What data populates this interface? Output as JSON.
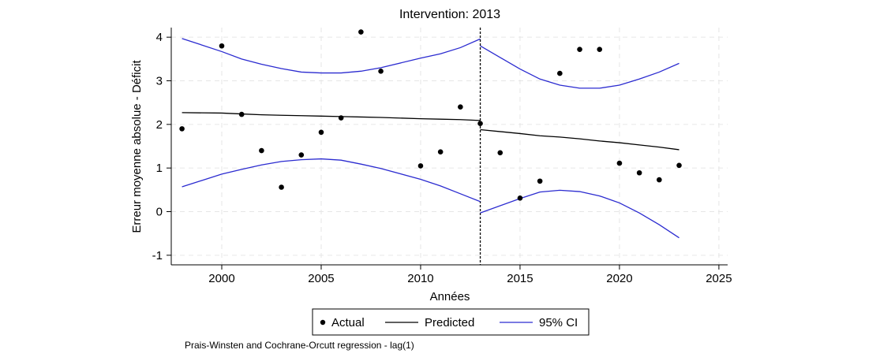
{
  "chart_data": {
    "type": "line",
    "title": "Intervention: 2013",
    "xlabel": "Années",
    "ylabel": "Erreur moyenne absolue - Déficit",
    "note": "Prais-Winsten and Cochrane-Orcutt regression - lag(1)",
    "xlim": [
      1997.46,
      2025.44
    ],
    "ylim": [
      -1.22,
      4.22
    ],
    "xticks": [
      2000,
      2005,
      2010,
      2015,
      2020,
      2025
    ],
    "yticks": [
      -1,
      0,
      1,
      2,
      3,
      4
    ],
    "grid": true,
    "intervention_year": 2013,
    "legend": {
      "placement": "bottom",
      "entries": [
        "Actual",
        "Predicted",
        "95% CI"
      ]
    },
    "colors": {
      "actual": "#000000",
      "predicted": "#000000",
      "ci": "#2b2bd0",
      "grid": "#e6e6e6"
    },
    "actual": {
      "x": [
        1998,
        2000,
        2001,
        2002,
        2003,
        2004,
        2005,
        2006,
        2007,
        2008,
        2010,
        2011,
        2012,
        2013,
        2014,
        2015,
        2016,
        2017,
        2018,
        2019,
        2020,
        2021,
        2022,
        2023
      ],
      "y": [
        1.9,
        3.8,
        2.23,
        1.4,
        0.56,
        1.3,
        1.82,
        2.15,
        4.12,
        3.22,
        1.05,
        1.37,
        2.4,
        2.02,
        1.35,
        0.31,
        0.7,
        3.17,
        3.72,
        3.72,
        1.11,
        0.89,
        0.73,
        1.06
      ]
    },
    "segments": [
      {
        "x": [
          1998,
          2000,
          2001,
          2002,
          2003,
          2004,
          2005,
          2006,
          2007,
          2008,
          2010,
          2011,
          2012,
          2013
        ],
        "predicted": [
          2.27,
          2.26,
          2.24,
          2.22,
          2.21,
          2.2,
          2.19,
          2.18,
          2.17,
          2.16,
          2.13,
          2.12,
          2.11,
          2.09
        ],
        "upper": [
          3.97,
          3.67,
          3.5,
          3.38,
          3.28,
          3.2,
          3.18,
          3.18,
          3.22,
          3.3,
          3.52,
          3.62,
          3.76,
          3.96
        ],
        "lower": [
          0.57,
          0.86,
          0.97,
          1.07,
          1.15,
          1.19,
          1.21,
          1.18,
          1.09,
          0.99,
          0.74,
          0.59,
          0.41,
          0.23
        ]
      },
      {
        "x": [
          2013,
          2015,
          2016,
          2017,
          2018,
          2019,
          2020,
          2021,
          2022,
          2023
        ],
        "predicted": [
          1.88,
          1.79,
          1.74,
          1.71,
          1.67,
          1.62,
          1.58,
          1.53,
          1.48,
          1.42
        ],
        "upper": [
          3.8,
          3.27,
          3.04,
          2.9,
          2.83,
          2.83,
          2.9,
          3.04,
          3.2,
          3.4
        ],
        "lower": [
          -0.03,
          0.3,
          0.45,
          0.49,
          0.46,
          0.36,
          0.2,
          -0.03,
          -0.3,
          -0.6
        ]
      }
    ]
  }
}
